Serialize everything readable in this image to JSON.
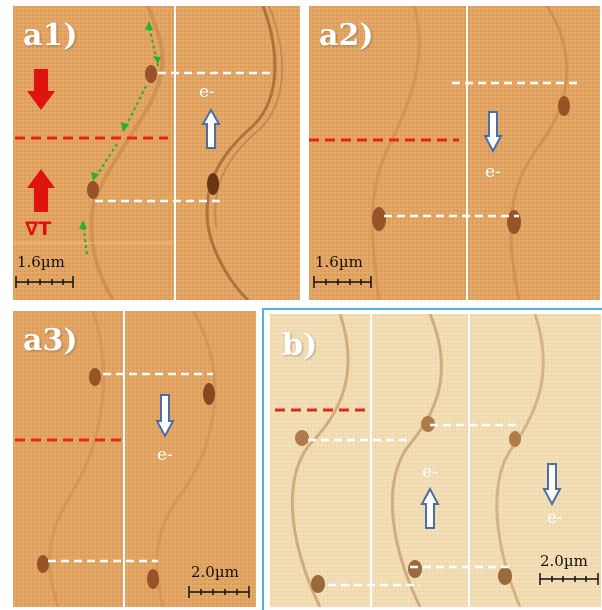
{
  "panels": {
    "a1": {
      "label": "a1)",
      "scale": "1.6µm",
      "electron": "e-",
      "gradient": "∇T"
    },
    "a2": {
      "label": "a2)",
      "scale": "1.6µm",
      "electron": "e-"
    },
    "a3": {
      "label": "a3)",
      "scale": "2.0µm",
      "electron": "e-"
    },
    "b": {
      "label": "b)",
      "scale": "2.0µm",
      "electron_1": "e-",
      "electron_2": "e-"
    }
  },
  "colors": {
    "background_a": "#e3a564",
    "background_b": "#f2dcb4",
    "red_line": "#e8231a",
    "white_line": "#ffffff",
    "green_arrow": "#27b02b",
    "blue_arrow": "#4a6ea8",
    "red_arrow": "#e0140e",
    "frame_blue": "#4eb1e6"
  }
}
